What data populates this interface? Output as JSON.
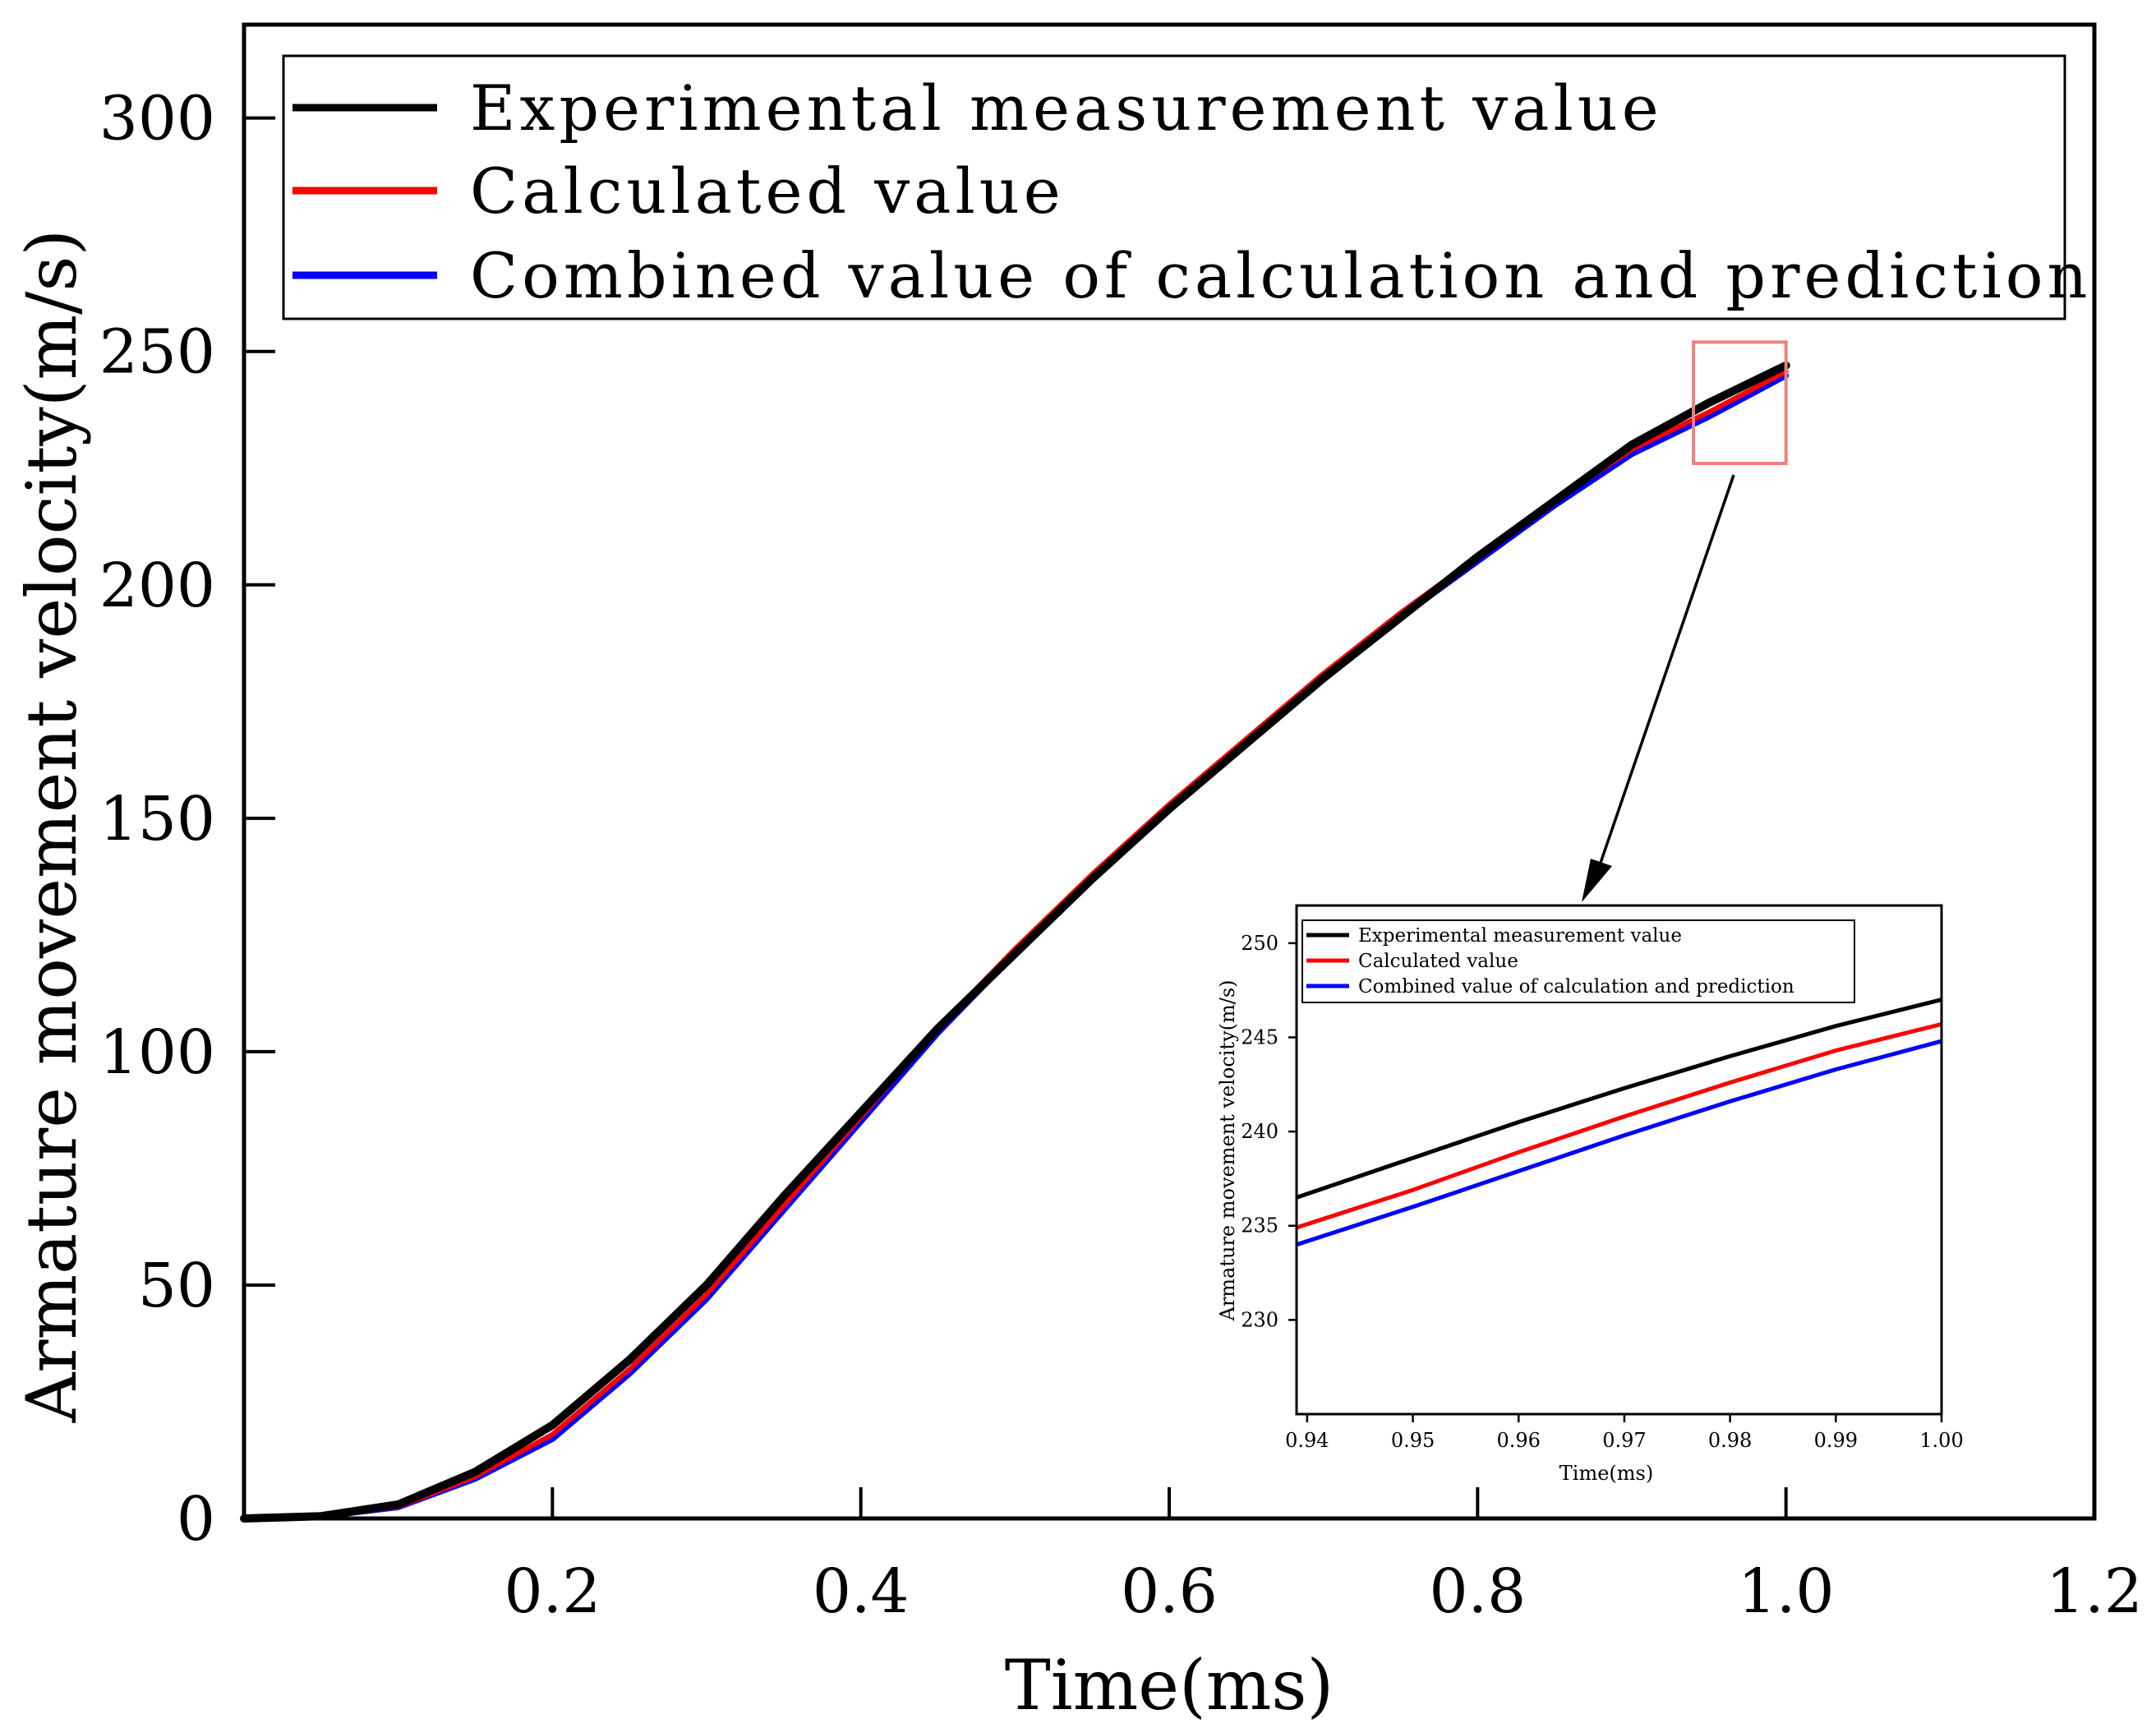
{
  "chart_data": [
    {
      "id": "main",
      "type": "line",
      "title": "",
      "xlabel": "Time(ms)",
      "ylabel": "Armature movement velocity(m/s)",
      "xlim": [
        0.0,
        1.2
      ],
      "ylim": [
        0,
        320
      ],
      "xticks": [
        0.2,
        0.4,
        0.6,
        0.8,
        1.0,
        1.2
      ],
      "xtick_labels": [
        "0.2",
        "0.4",
        "0.6",
        "0.8",
        "1.0",
        "1.2"
      ],
      "yticks": [
        0,
        50,
        100,
        150,
        200,
        250,
        300
      ],
      "ytick_labels": [
        "0",
        "50",
        "100",
        "150",
        "200",
        "250",
        "300"
      ],
      "legend_position": "top-left",
      "series": [
        {
          "name": "Experimental measurement value",
          "color": "#000000",
          "x": [
            0.0,
            0.05,
            0.1,
            0.15,
            0.2,
            0.25,
            0.3,
            0.35,
            0.4,
            0.45,
            0.5,
            0.55,
            0.6,
            0.65,
            0.7,
            0.75,
            0.8,
            0.85,
            0.9,
            0.95,
            1.0
          ],
          "y": [
            0,
            0.5,
            3,
            10,
            20,
            34,
            50,
            69,
            87,
            105,
            121,
            137,
            152,
            166,
            180,
            193,
            206,
            218,
            230,
            239,
            247
          ]
        },
        {
          "name": "Calculated value",
          "color": "#ff0000",
          "x": [
            0.0,
            0.05,
            0.1,
            0.15,
            0.2,
            0.25,
            0.3,
            0.35,
            0.4,
            0.45,
            0.5,
            0.55,
            0.6,
            0.65,
            0.7,
            0.75,
            0.8,
            0.85,
            0.9,
            0.95,
            1.0
          ],
          "y": [
            0,
            0.4,
            2.5,
            9,
            18,
            32,
            48,
            67,
            86,
            105,
            122,
            138,
            153,
            167,
            181,
            194,
            206,
            218,
            229,
            237,
            245.7
          ]
        },
        {
          "name": "Combined value of calculation and prediction",
          "color": "#0000ff",
          "x": [
            0.0,
            0.05,
            0.1,
            0.15,
            0.2,
            0.25,
            0.3,
            0.35,
            0.4,
            0.45,
            0.5,
            0.55,
            0.6,
            0.65,
            0.7,
            0.75,
            0.8,
            0.85,
            0.9,
            0.95,
            1.0
          ],
          "y": [
            0,
            0.4,
            2.4,
            8.5,
            17,
            31,
            47,
            66,
            85,
            104,
            121,
            137,
            152,
            166,
            180,
            193,
            205,
            217,
            228,
            236,
            244.8
          ]
        }
      ]
    },
    {
      "id": "inset",
      "type": "line",
      "title": "",
      "xlabel": "Time(ms)",
      "ylabel": "Armature movement velocity(m/s)",
      "xlim": [
        0.939,
        1.0
      ],
      "ylim": [
        225,
        252
      ],
      "xticks": [
        0.94,
        0.95,
        0.96,
        0.97,
        0.98,
        0.99,
        1.0
      ],
      "xtick_labels": [
        "0.94",
        "0.95",
        "0.96",
        "0.97",
        "0.98",
        "0.99",
        "1.00"
      ],
      "yticks": [
        230,
        235,
        240,
        245,
        250
      ],
      "ytick_labels": [
        "230",
        "235",
        "240",
        "245",
        "250"
      ],
      "legend_position": "top-left",
      "series": [
        {
          "name": "Experimental measurement value",
          "color": "#000000",
          "x": [
            0.939,
            0.95,
            0.96,
            0.97,
            0.98,
            0.99,
            1.0
          ],
          "y": [
            236.5,
            238.6,
            240.5,
            242.3,
            244.0,
            245.6,
            247.0
          ]
        },
        {
          "name": "Calculated value",
          "color": "#ff0000",
          "x": [
            0.939,
            0.95,
            0.96,
            0.97,
            0.98,
            0.99,
            1.0
          ],
          "y": [
            234.9,
            236.9,
            238.9,
            240.8,
            242.6,
            244.3,
            245.7
          ]
        },
        {
          "name": "Combined value of calculation and prediction",
          "color": "#0000ff",
          "x": [
            0.939,
            0.95,
            0.96,
            0.97,
            0.98,
            0.99,
            1.0
          ],
          "y": [
            234.0,
            236.0,
            237.9,
            239.8,
            241.6,
            243.3,
            244.8
          ]
        }
      ]
    }
  ],
  "zoom_box": {
    "x_range": [
      0.94,
      1.0
    ],
    "y_range": [
      226,
      252
    ],
    "color": "#f08080"
  }
}
